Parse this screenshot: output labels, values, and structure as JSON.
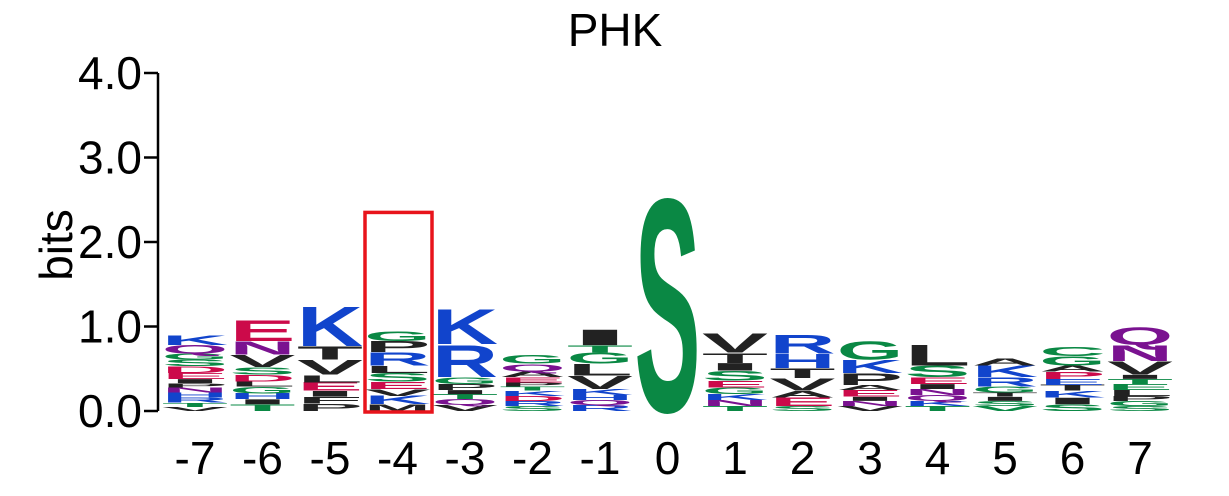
{
  "chart_data": {
    "type": "sequence-logo",
    "title": "PHK",
    "ylabel": "bits",
    "ylim": [
      0,
      4
    ],
    "y_ticks": [
      "0.0",
      "1.0",
      "2.0",
      "3.0",
      "4.0"
    ],
    "y_tick_values": [
      0,
      1,
      2,
      3,
      4
    ],
    "highlight_position": "-4",
    "highlight_height": 2.35,
    "highlight_color": "#e8141c",
    "colors": {
      "basic": "#1144cc",
      "acidic": "#cc0a4a",
      "polar": "#0a8844",
      "amide": "#7a1290",
      "hydrophobic": "#222222"
    },
    "positions": [
      {
        "label": "-7",
        "stack": [
          {
            "letter": "V",
            "height": 0.05,
            "color": "#222222"
          },
          {
            "letter": "T",
            "height": 0.05,
            "color": "#0a8844"
          },
          {
            "letter": "R",
            "height": 0.06,
            "color": "#1144cc"
          },
          {
            "letter": "H",
            "height": 0.06,
            "color": "#1144cc"
          },
          {
            "letter": "N",
            "height": 0.06,
            "color": "#7a1290"
          },
          {
            "letter": "P",
            "height": 0.05,
            "color": "#222222"
          },
          {
            "letter": "I",
            "height": 0.05,
            "color": "#222222"
          },
          {
            "letter": "E",
            "height": 0.07,
            "color": "#cc0a4a"
          },
          {
            "letter": "D",
            "height": 0.08,
            "color": "#cc0a4a"
          },
          {
            "letter": "S",
            "height": 0.08,
            "color": "#0a8844"
          },
          {
            "letter": "G",
            "height": 0.07,
            "color": "#0a8844"
          },
          {
            "letter": "Q",
            "height": 0.1,
            "color": "#7a1290"
          },
          {
            "letter": "K",
            "height": 0.12,
            "color": "#1144cc"
          }
        ]
      },
      {
        "label": "-6",
        "stack": [
          {
            "letter": "T",
            "height": 0.08,
            "color": "#0a8844"
          },
          {
            "letter": "I",
            "height": 0.06,
            "color": "#222222"
          },
          {
            "letter": "H",
            "height": 0.07,
            "color": "#1144cc"
          },
          {
            "letter": "G",
            "height": 0.08,
            "color": "#0a8844"
          },
          {
            "letter": "L",
            "height": 0.06,
            "color": "#222222"
          },
          {
            "letter": "D",
            "height": 0.08,
            "color": "#cc0a4a"
          },
          {
            "letter": "S",
            "height": 0.09,
            "color": "#0a8844"
          },
          {
            "letter": "V",
            "height": 0.15,
            "color": "#222222"
          },
          {
            "letter": "N",
            "height": 0.16,
            "color": "#7a1290"
          },
          {
            "letter": "E",
            "height": 0.25,
            "color": "#cc0a4a"
          }
        ]
      },
      {
        "label": "-5",
        "stack": [
          {
            "letter": "P",
            "height": 0.09,
            "color": "#222222"
          },
          {
            "letter": "F",
            "height": 0.08,
            "color": "#222222"
          },
          {
            "letter": "I",
            "height": 0.07,
            "color": "#222222"
          },
          {
            "letter": "E",
            "height": 0.1,
            "color": "#cc0a4a"
          },
          {
            "letter": "L",
            "height": 0.09,
            "color": "#222222"
          },
          {
            "letter": "V",
            "height": 0.18,
            "color": "#222222"
          },
          {
            "letter": "T",
            "height": 0.16,
            "color": "#222222"
          },
          {
            "letter": "K",
            "height": 0.48,
            "color": "#1144cc"
          }
        ]
      },
      {
        "label": "-4",
        "stack": [
          {
            "letter": "M",
            "height": 0.08,
            "color": "#222222"
          },
          {
            "letter": "K",
            "height": 0.1,
            "color": "#1144cc"
          },
          {
            "letter": "V",
            "height": 0.08,
            "color": "#222222"
          },
          {
            "letter": "E",
            "height": 0.09,
            "color": "#cc0a4a"
          },
          {
            "letter": "S",
            "height": 0.1,
            "color": "#0a8844"
          },
          {
            "letter": "L",
            "height": 0.09,
            "color": "#222222"
          },
          {
            "letter": "R",
            "height": 0.16,
            "color": "#1144cc"
          },
          {
            "letter": "P",
            "height": 0.13,
            "color": "#222222"
          },
          {
            "letter": "G",
            "height": 0.12,
            "color": "#0a8844"
          }
        ]
      },
      {
        "label": "-3",
        "stack": [
          {
            "letter": "V",
            "height": 0.07,
            "color": "#222222"
          },
          {
            "letter": "Q",
            "height": 0.07,
            "color": "#7a1290"
          },
          {
            "letter": "T",
            "height": 0.06,
            "color": "#0a8844"
          },
          {
            "letter": "I",
            "height": 0.05,
            "color": "#222222"
          },
          {
            "letter": "P",
            "height": 0.07,
            "color": "#222222"
          },
          {
            "letter": "G",
            "height": 0.08,
            "color": "#0a8844"
          },
          {
            "letter": "R",
            "height": 0.39,
            "color": "#1144cc"
          },
          {
            "letter": "K",
            "height": 0.43,
            "color": "#1144cc"
          }
        ]
      },
      {
        "label": "-2",
        "stack": [
          {
            "letter": "S",
            "height": 0.06,
            "color": "#0a8844"
          },
          {
            "letter": "R",
            "height": 0.06,
            "color": "#1144cc"
          },
          {
            "letter": "D",
            "height": 0.06,
            "color": "#cc0a4a"
          },
          {
            "letter": "K",
            "height": 0.06,
            "color": "#1144cc"
          },
          {
            "letter": "T",
            "height": 0.05,
            "color": "#0a8844"
          },
          {
            "letter": "P",
            "height": 0.05,
            "color": "#222222"
          },
          {
            "letter": "E",
            "height": 0.06,
            "color": "#cc0a4a"
          },
          {
            "letter": "A",
            "height": 0.07,
            "color": "#222222"
          },
          {
            "letter": "Q",
            "height": 0.09,
            "color": "#7a1290"
          },
          {
            "letter": "G",
            "height": 0.1,
            "color": "#0a8844"
          }
        ]
      },
      {
        "label": "-1",
        "stack": [
          {
            "letter": "R",
            "height": 0.07,
            "color": "#1144cc"
          },
          {
            "letter": "Q",
            "height": 0.06,
            "color": "#7a1290"
          },
          {
            "letter": "H",
            "height": 0.06,
            "color": "#1144cc"
          },
          {
            "letter": "K",
            "height": 0.07,
            "color": "#1144cc"
          },
          {
            "letter": "V",
            "height": 0.16,
            "color": "#222222"
          },
          {
            "letter": "L",
            "height": 0.14,
            "color": "#222222"
          },
          {
            "letter": "G",
            "height": 0.13,
            "color": "#0a8844"
          },
          {
            "letter": "T",
            "height": 0.09,
            "color": "#0a8844"
          },
          {
            "letter": "I",
            "height": 0.19,
            "color": "#222222"
          }
        ]
      },
      {
        "label": "0",
        "stack": [
          {
            "letter": "S",
            "height": 2.6,
            "color": "#0a8844"
          }
        ]
      },
      {
        "label": "1",
        "stack": [
          {
            "letter": "T",
            "height": 0.06,
            "color": "#0a8844"
          },
          {
            "letter": "N",
            "height": 0.07,
            "color": "#7a1290"
          },
          {
            "letter": "K",
            "height": 0.07,
            "color": "#1144cc"
          },
          {
            "letter": "G",
            "height": 0.08,
            "color": "#0a8844"
          },
          {
            "letter": "E",
            "height": 0.08,
            "color": "#cc0a4a"
          },
          {
            "letter": "S",
            "height": 0.12,
            "color": "#0a8844"
          },
          {
            "letter": "I",
            "height": 0.09,
            "color": "#222222"
          },
          {
            "letter": "T",
            "height": 0.12,
            "color": "#222222"
          },
          {
            "letter": "V",
            "height": 0.24,
            "color": "#222222"
          }
        ]
      },
      {
        "label": "2",
        "stack": [
          {
            "letter": "S",
            "height": 0.06,
            "color": "#0a8844"
          },
          {
            "letter": "E",
            "height": 0.1,
            "color": "#cc0a4a"
          },
          {
            "letter": "A",
            "height": 0.08,
            "color": "#222222"
          },
          {
            "letter": "V",
            "height": 0.15,
            "color": "#222222"
          },
          {
            "letter": "T",
            "height": 0.12,
            "color": "#222222"
          },
          {
            "letter": "H",
            "height": 0.17,
            "color": "#1144cc"
          },
          {
            "letter": "R",
            "height": 0.23,
            "color": "#1144cc"
          }
        ]
      },
      {
        "label": "3",
        "stack": [
          {
            "letter": "V",
            "height": 0.06,
            "color": "#222222"
          },
          {
            "letter": "N",
            "height": 0.06,
            "color": "#7a1290"
          },
          {
            "letter": "I",
            "height": 0.05,
            "color": "#222222"
          },
          {
            "letter": "E",
            "height": 0.08,
            "color": "#cc0a4a"
          },
          {
            "letter": "A",
            "height": 0.06,
            "color": "#222222"
          },
          {
            "letter": "P",
            "height": 0.14,
            "color": "#222222"
          },
          {
            "letter": "K",
            "height": 0.16,
            "color": "#1144cc"
          },
          {
            "letter": "G",
            "height": 0.22,
            "color": "#0a8844"
          }
        ]
      },
      {
        "label": "4",
        "stack": [
          {
            "letter": "T",
            "height": 0.06,
            "color": "#0a8844"
          },
          {
            "letter": "K",
            "height": 0.06,
            "color": "#1144cc"
          },
          {
            "letter": "Q",
            "height": 0.07,
            "color": "#7a1290"
          },
          {
            "letter": "N",
            "height": 0.07,
            "color": "#7a1290"
          },
          {
            "letter": "I",
            "height": 0.06,
            "color": "#222222"
          },
          {
            "letter": "E",
            "height": 0.08,
            "color": "#cc0a4a"
          },
          {
            "letter": "S",
            "height": 0.14,
            "color": "#0a8844"
          },
          {
            "letter": "L",
            "height": 0.25,
            "color": "#222222"
          }
        ]
      },
      {
        "label": "5",
        "stack": [
          {
            "letter": "V",
            "height": 0.06,
            "color": "#0a8844"
          },
          {
            "letter": "S",
            "height": 0.06,
            "color": "#0a8844"
          },
          {
            "letter": "I",
            "height": 0.05,
            "color": "#222222"
          },
          {
            "letter": "T",
            "height": 0.05,
            "color": "#222222"
          },
          {
            "letter": "G",
            "height": 0.07,
            "color": "#0a8844"
          },
          {
            "letter": "R",
            "height": 0.11,
            "color": "#1144cc"
          },
          {
            "letter": "K",
            "height": 0.14,
            "color": "#1144cc"
          },
          {
            "letter": "A",
            "height": 0.09,
            "color": "#222222"
          }
        ]
      },
      {
        "label": "6",
        "stack": [
          {
            "letter": "S",
            "height": 0.08,
            "color": "#0a8844"
          },
          {
            "letter": "I",
            "height": 0.08,
            "color": "#222222"
          },
          {
            "letter": "K",
            "height": 0.08,
            "color": "#1144cc"
          },
          {
            "letter": "T",
            "height": 0.07,
            "color": "#222222"
          },
          {
            "letter": "E",
            "height": 0.07,
            "color": "#1144cc"
          },
          {
            "letter": "P",
            "height": 0.09,
            "color": "#cc0a4a"
          },
          {
            "letter": "A",
            "height": 0.07,
            "color": "#222222"
          },
          {
            "letter": "G",
            "height": 0.11,
            "color": "#0a8844"
          },
          {
            "letter": "C",
            "height": 0.11,
            "color": "#0a8844"
          }
        ]
      },
      {
        "label": "7",
        "stack": [
          {
            "letter": "S",
            "height": 0.06,
            "color": "#0a8844"
          },
          {
            "letter": "G",
            "height": 0.06,
            "color": "#0a8844"
          },
          {
            "letter": "P",
            "height": 0.06,
            "color": "#222222"
          },
          {
            "letter": "L",
            "height": 0.07,
            "color": "#222222"
          },
          {
            "letter": "E",
            "height": 0.07,
            "color": "#0a8844"
          },
          {
            "letter": "T",
            "height": 0.06,
            "color": "#0a8844"
          },
          {
            "letter": "I",
            "height": 0.05,
            "color": "#222222"
          },
          {
            "letter": "V",
            "height": 0.16,
            "color": "#222222"
          },
          {
            "letter": "N",
            "height": 0.19,
            "color": "#7a1290"
          },
          {
            "letter": "Q",
            "height": 0.21,
            "color": "#7a1290"
          }
        ]
      }
    ]
  }
}
